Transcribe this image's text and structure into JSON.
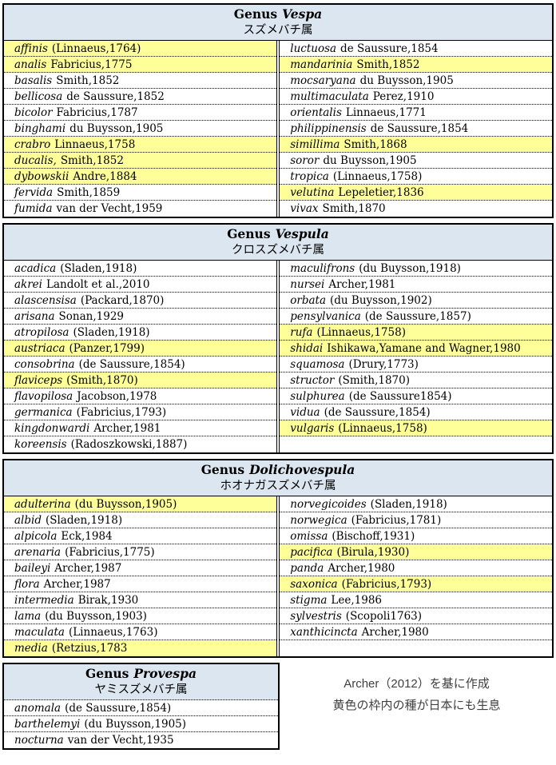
{
  "colors": {
    "header_bg": "#dce6f1",
    "highlight": "#ffff99",
    "border": "#000000",
    "text": "#000000",
    "note_text": "#404040"
  },
  "note": {
    "line1": "Archer（2012）を基に作成",
    "line2": "黄色の枠内の種が日本にも生息"
  },
  "sections": [
    {
      "id": "vespa",
      "prefix": "Genus",
      "genus": "Vespa",
      "jp": "スズメバチ属",
      "layout": "two-column",
      "header_divider": "solid",
      "left": [
        {
          "n": "affinis",
          "a": "(Linnaeus,1764)",
          "h": true
        },
        {
          "n": "analis",
          "a": "Fabricius,1775",
          "h": true
        },
        {
          "n": "basalis",
          "a": "Smith,1852",
          "h": false
        },
        {
          "n": "bellicosa",
          "a": "de Saussure,1852",
          "h": false
        },
        {
          "n": "bicolor",
          "a": "Fabricius,1787",
          "h": false
        },
        {
          "n": "binghami",
          "a": "du Buysson,1905",
          "h": false
        },
        {
          "n": "crabro",
          "a": "Linnaeus,1758",
          "h": true
        },
        {
          "n": "ducalis,",
          "a": "Smith,1852",
          "h": true
        },
        {
          "n": "dybowskii",
          "a": "Andre,1884",
          "h": true
        },
        {
          "n": "fervida",
          "a": "Smith,1859",
          "h": false
        },
        {
          "n": "fumida",
          "a": "van der Vecht,1959",
          "h": false
        }
      ],
      "right": [
        {
          "n": "luctuosa",
          "a": "de Saussure,1854",
          "h": false
        },
        {
          "n": "mandarinia",
          "a": "Smith,1852",
          "h": true
        },
        {
          "n": "mocsaryana",
          "a": "du Buysson,1905",
          "h": false
        },
        {
          "n": "multimaculata",
          "a": "Perez,1910",
          "h": false
        },
        {
          "n": "orientalis",
          "a": "Linnaeus,1771",
          "h": false
        },
        {
          "n": "philippinensis",
          "a": "de Saussure,1854",
          "h": false
        },
        {
          "n": "simillima",
          "a": "Smith,1868",
          "h": true
        },
        {
          "n": "soror",
          "a": "du Buysson,1905",
          "h": false
        },
        {
          "n": "tropica",
          "a": "(Linnaeus,1758)",
          "h": false
        },
        {
          "n": "velutina",
          "a": "Lepeletier,1836",
          "h": true
        },
        {
          "n": "vivax",
          "a": "Smith,1870",
          "h": false
        }
      ]
    },
    {
      "id": "vespula",
      "prefix": "Genus",
      "genus": "Vespula",
      "jp": "クロスズメバチ属",
      "layout": "two-column",
      "header_divider": "solid",
      "left": [
        {
          "n": "acadica",
          "a": "(Sladen,1918)",
          "h": false
        },
        {
          "n": "akrei",
          "a": "Landolt et al.,2010",
          "h": false
        },
        {
          "n": "alascensisa",
          "a": "(Packard,1870)",
          "h": false
        },
        {
          "n": "arisana",
          "a": "Sonan,1929",
          "h": false
        },
        {
          "n": "atropilosa",
          "a": "(Sladen,1918)",
          "h": false
        },
        {
          "n": "austriaca",
          "a": "(Panzer,1799)",
          "h": true
        },
        {
          "n": "consobrina",
          "a": "(de Saussure,1854)",
          "h": false
        },
        {
          "n": "flaviceps",
          "a": "(Smith,1870)",
          "h": true
        },
        {
          "n": "flavopilosa",
          "a": "Jacobson,1978",
          "h": false
        },
        {
          "n": "germanica",
          "a": "(Fabricius,1793)",
          "h": false
        },
        {
          "n": "kingdonwardi",
          "a": "Archer,1981",
          "h": false
        },
        {
          "n": "koreensis",
          "a": "(Radoszkowski,1887)",
          "h": false
        }
      ],
      "right": [
        {
          "n": "maculifrons",
          "a": "(du Buysson,1918)",
          "h": false
        },
        {
          "n": "nursei",
          "a": "Archer,1981",
          "h": false
        },
        {
          "n": "orbata",
          "a": "(du Buysson,1902)",
          "h": false
        },
        {
          "n": "pensylvanica",
          "a": "(de Saussure,1857)",
          "h": false
        },
        {
          "n": "rufa",
          "a": "(Linnaeus,1758)",
          "h": true
        },
        {
          "n": "shidai",
          "a": "Ishikawa,Yamane and Wagner,1980",
          "h": true
        },
        {
          "n": "squamosa",
          "a": "(Drury,1773)",
          "h": false
        },
        {
          "n": "structor",
          "a": "(Smith,1870)",
          "h": false
        },
        {
          "n": "sulphurea",
          "a": "(de Saussure1854)",
          "h": false
        },
        {
          "n": "vidua",
          "a": "(de Saussure,1854)",
          "h": false
        },
        {
          "n": "vulgaris",
          "a": "(Linnaeus,1758)",
          "h": true
        },
        {
          "n": "",
          "a": "",
          "h": false
        }
      ]
    },
    {
      "id": "dolichovespula",
      "prefix": "Genus",
      "genus": "Dolichovespula",
      "jp": "ホオナガスズメバチ属",
      "layout": "two-column",
      "header_divider": "solid",
      "left": [
        {
          "n": "adulterina",
          "a": "(du Buysson,1905)",
          "h": true
        },
        {
          "n": "albid",
          "a": "(Sladen,1918)",
          "h": false
        },
        {
          "n": "alpicola",
          "a": "Eck,1984",
          "h": false
        },
        {
          "n": "arenaria",
          "a": "(Fabricius,1775)",
          "h": false
        },
        {
          "n": "baileyi",
          "a": "Archer,1987",
          "h": false
        },
        {
          "n": "flora",
          "a": "Archer,1987",
          "h": false
        },
        {
          "n": "intermedia",
          "a": "Birak,1930",
          "h": false
        },
        {
          "n": "lama",
          "a": "(du Buysson,1903)",
          "h": false
        },
        {
          "n": "maculata",
          "a": "(Linnaeus,1763)",
          "h": false
        },
        {
          "n": "media",
          "a": "(Retzius,1783",
          "h": true
        }
      ],
      "right": [
        {
          "n": "norvegicoides",
          "a": "(Sladen,1918)",
          "h": false
        },
        {
          "n": "norwegica",
          "a": "(Fabricius,1781)",
          "h": false
        },
        {
          "n": "omissa",
          "a": "(Bischoff,1931)",
          "h": false
        },
        {
          "n": "pacifica",
          "a": "(Birula,1930)",
          "h": true
        },
        {
          "n": "panda",
          "a": "Archer,1980",
          "h": false
        },
        {
          "n": "saxonica",
          "a": "(Fabricius,1793)",
          "h": true
        },
        {
          "n": "stigma",
          "a": "Lee,1986",
          "h": false
        },
        {
          "n": "sylvestris",
          "a": "(Scopoli1763)",
          "h": false
        },
        {
          "n": "xanthicincta",
          "a": "Archer,1980",
          "h": false
        },
        {
          "n": "",
          "a": "",
          "h": false
        }
      ]
    },
    {
      "id": "provespa",
      "prefix": "Genus",
      "genus": "Provespa",
      "jp": "ヤミスズメバチ属",
      "layout": "one-column",
      "header_divider": "dotted",
      "left": [
        {
          "n": "anomala",
          "a": "(de Saussure,1854)",
          "h": false
        },
        {
          "n": "barthelemyi",
          "a": "(du Buysson,1905)",
          "h": false
        },
        {
          "n": "nocturna",
          "a": "van der Vecht,1935",
          "h": false
        }
      ]
    }
  ]
}
